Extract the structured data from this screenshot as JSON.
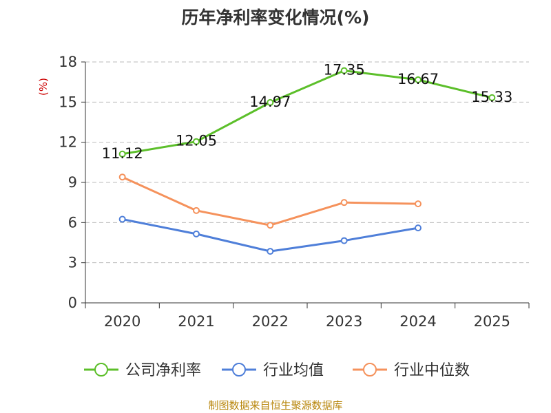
{
  "chart_data": {
    "type": "line",
    "title": "历年净利率变化情况(%)",
    "ylabel": "(%)",
    "xlabel": "",
    "categories": [
      "2020",
      "2021",
      "2022",
      "2023",
      "2024",
      "2025"
    ],
    "ylim": [
      0,
      18
    ],
    "yticks": [
      0,
      3,
      6,
      9,
      12,
      15,
      18
    ],
    "grid": true,
    "legend_position": "bottom",
    "series": [
      {
        "name": "公司净利率",
        "color": "#5cbf2a",
        "values": [
          11.12,
          12.05,
          14.97,
          17.35,
          16.67,
          15.33
        ],
        "labels": [
          "11.12",
          "12.05",
          "14.97",
          "17.35",
          "16.67",
          "15.33"
        ]
      },
      {
        "name": "行业均值",
        "color": "#4f7fd9",
        "values": [
          6.25,
          5.15,
          3.85,
          4.65,
          5.6,
          null
        ]
      },
      {
        "name": "行业中位数",
        "color": "#f5925c",
        "values": [
          9.4,
          6.9,
          5.8,
          7.5,
          7.4,
          null
        ]
      }
    ],
    "source": "制图数据来自恒生聚源数据库"
  }
}
